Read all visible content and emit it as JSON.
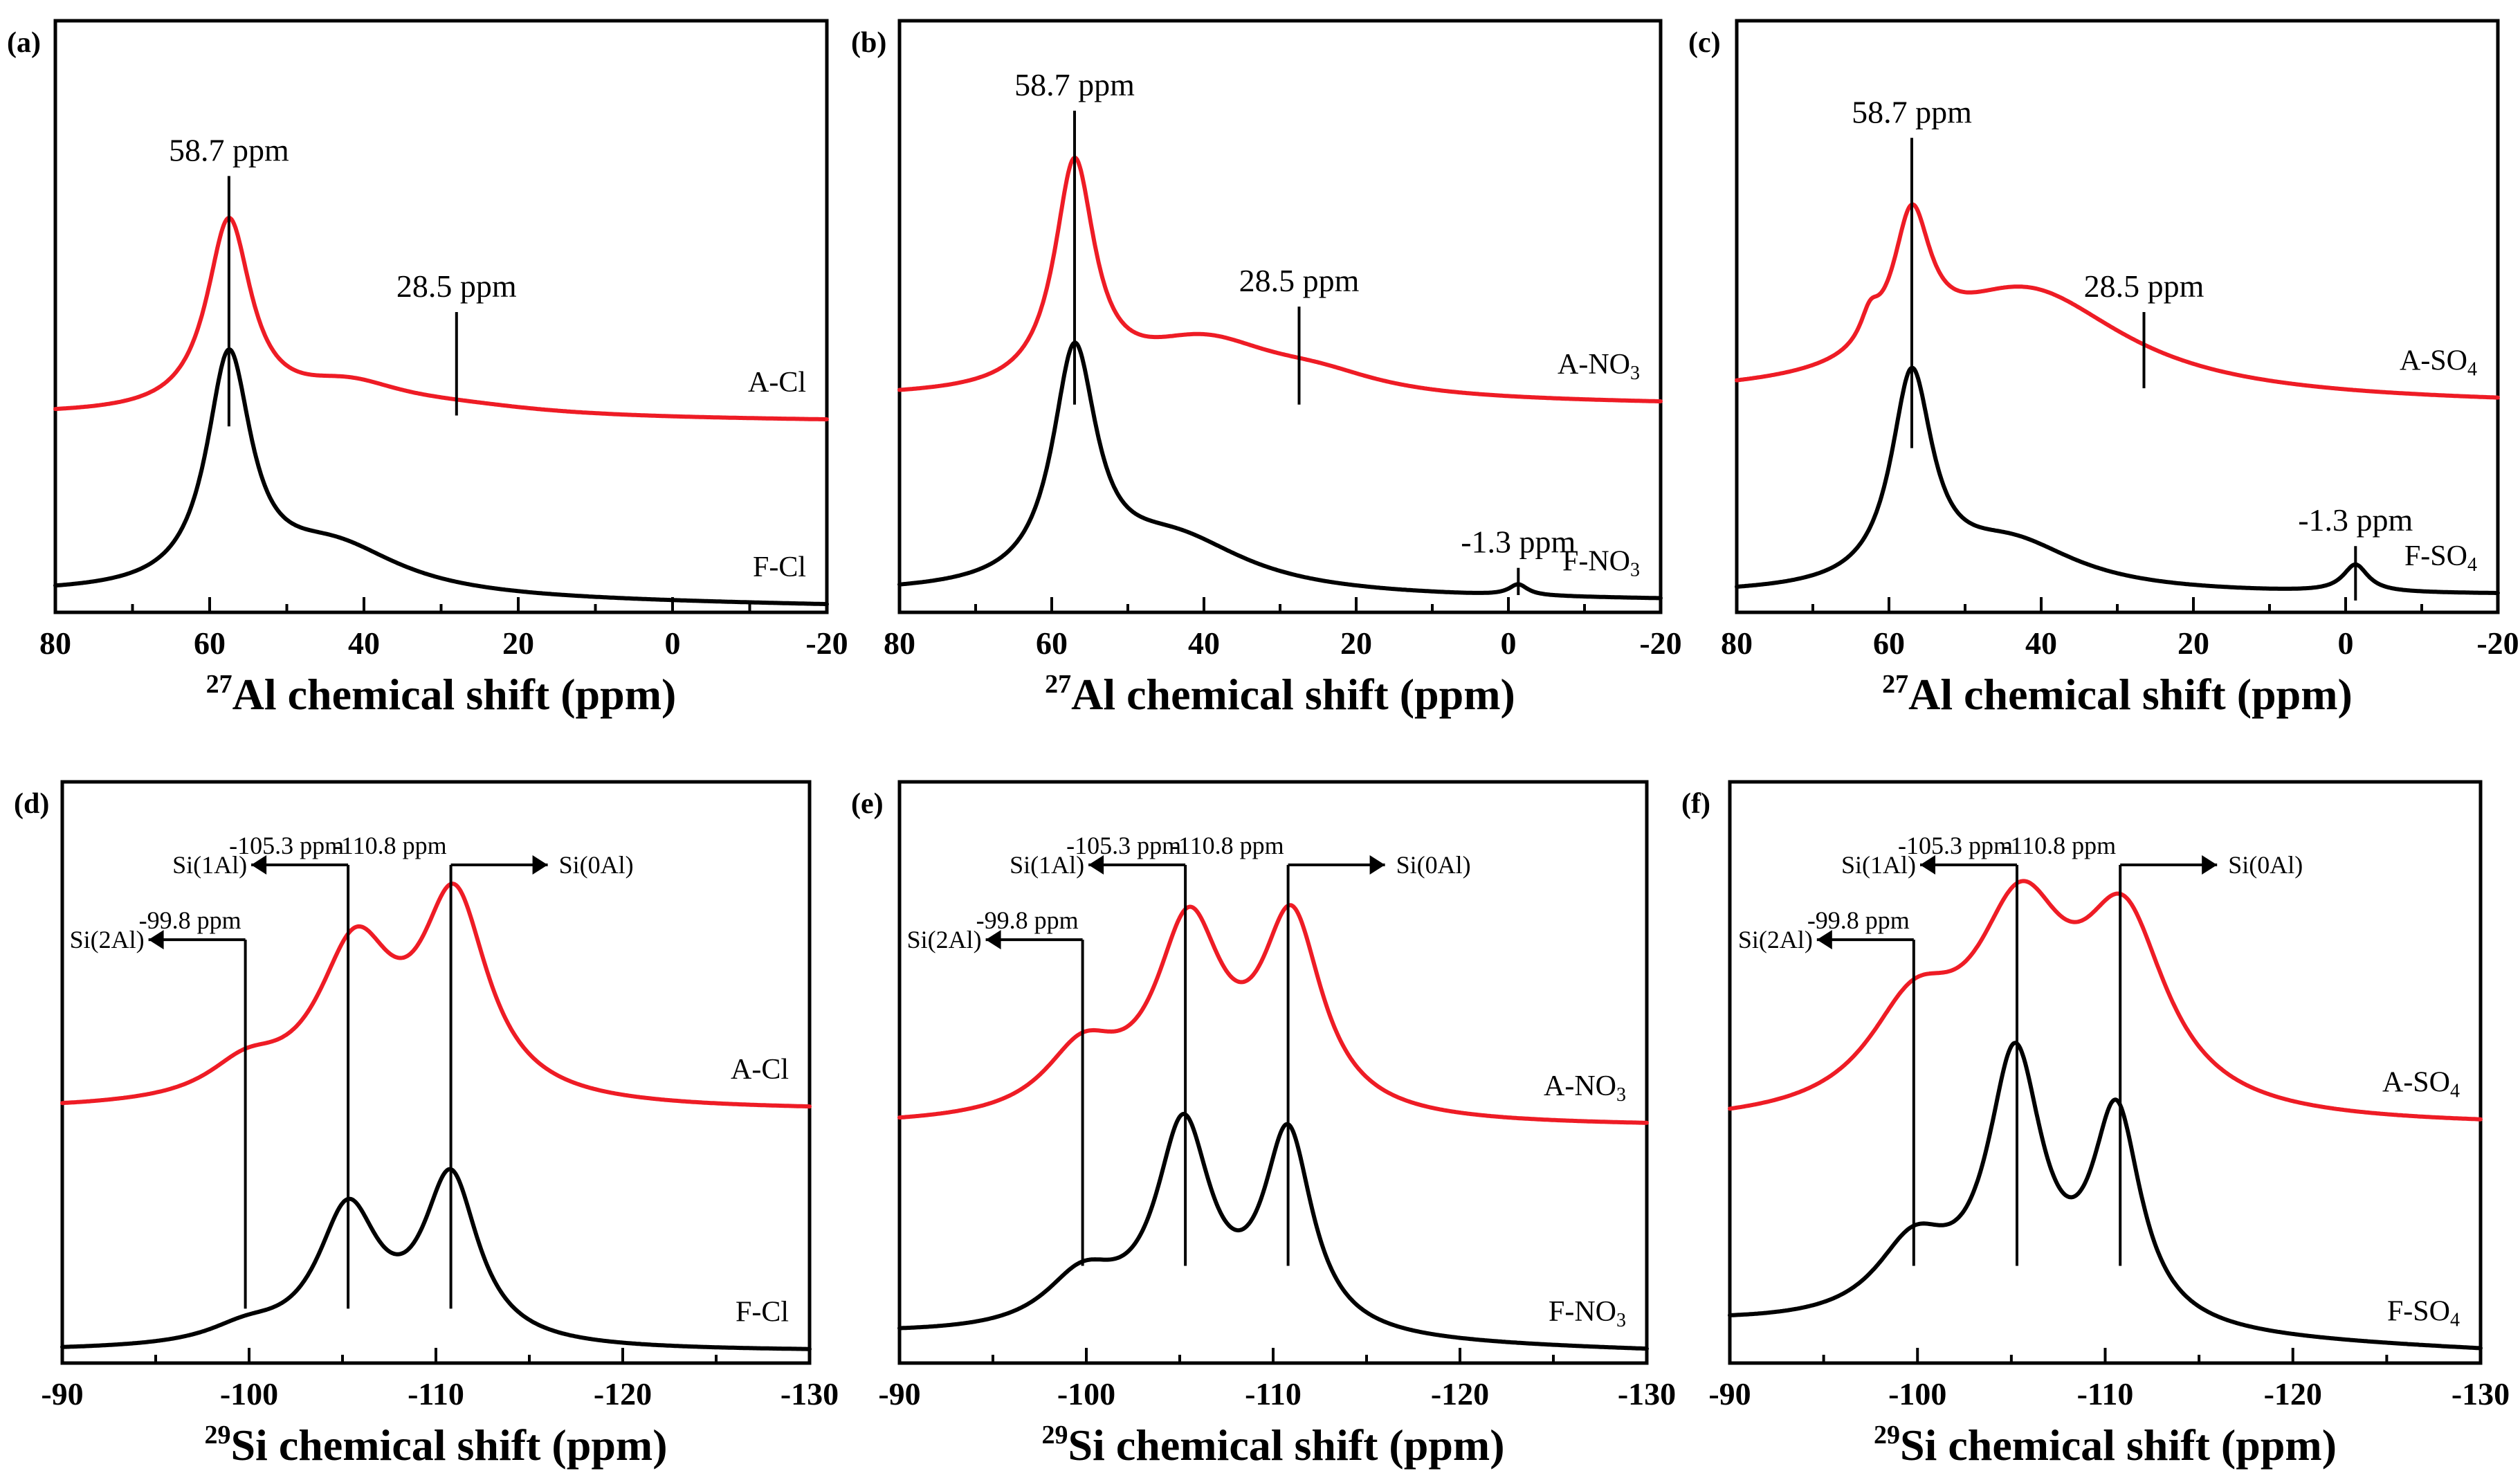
{
  "colors": {
    "top_curve": "#ee1c25",
    "bottom_curve": "#000000",
    "frame": "#000000"
  },
  "chart_data": [
    {
      "panel_label": "(a)",
      "type": "line",
      "xlim": [
        80,
        -20
      ],
      "x_ticks": [
        80,
        60,
        40,
        20,
        0,
        -20
      ],
      "x_tick_labels": [
        "80",
        "60",
        "40",
        "20",
        "0",
        "-20"
      ],
      "xlabel_sup": "27",
      "xlabel_main": "Al chemical shift (ppm)",
      "ylabel": "",
      "series": [
        {
          "name": "A-Cl",
          "label_main": "A-Cl",
          "label_sub": "",
          "color": "#ee1c25",
          "base": 0.34,
          "tail": 0.33,
          "peaks": [
            {
              "center": 57.5,
              "amp": 0.35,
              "width": 3.5
            },
            {
              "center": 42,
              "amp": 0.05,
              "width": 9
            },
            {
              "center": 28,
              "amp": 0.015,
              "width": 14
            }
          ]
        },
        {
          "name": "F-Cl",
          "label_main": "F-Cl",
          "label_sub": "",
          "color": "#000000",
          "base": 0.01,
          "tail": -0.01,
          "peaks": [
            {
              "center": 57.5,
              "amp": 0.42,
              "width": 3.5
            },
            {
              "center": 44,
              "amp": 0.09,
              "width": 11
            }
          ]
        }
      ],
      "annotations": [
        {
          "text": "58.7 ppm",
          "x": 57.5,
          "y_top": 0.78,
          "y_bottom": 0.32,
          "series": "A-Cl"
        },
        {
          "text": "28.5 ppm",
          "x": 28,
          "y_top": 0.53,
          "y_bottom": 0.34,
          "series": "A-Cl"
        }
      ]
    },
    {
      "panel_label": "(b)",
      "type": "line",
      "xlim": [
        80,
        -20
      ],
      "x_ticks": [
        80,
        60,
        40,
        20,
        0,
        -20
      ],
      "x_tick_labels": [
        "80",
        "60",
        "40",
        "20",
        "0",
        "-20"
      ],
      "xlabel_sup": "27",
      "xlabel_main": "Al chemical shift (ppm)",
      "ylabel": "",
      "series": [
        {
          "name": "A-NO3",
          "label_main": "A-NO",
          "label_sub": "3",
          "color": "#ee1c25",
          "base": 0.37,
          "tail": 0.36,
          "peaks": [
            {
              "center": 57,
              "amp": 0.41,
              "width": 3.2
            },
            {
              "center": 40,
              "amp": 0.1,
              "width": 12
            },
            {
              "center": 25,
              "amp": 0.03,
              "width": 10
            }
          ]
        },
        {
          "name": "F-NO3",
          "label_main": "F-NO",
          "label_sub": "3",
          "color": "#000000",
          "base": 0.01,
          "tail": 0.0,
          "peaks": [
            {
              "center": 57,
              "amp": 0.42,
              "width": 3.5
            },
            {
              "center": 44,
              "amp": 0.1,
              "width": 12
            },
            {
              "center": -1.3,
              "amp": 0.02,
              "width": 1.5
            }
          ]
        }
      ],
      "annotations": [
        {
          "text": "58.7 ppm",
          "x": 57,
          "y_top": 0.9,
          "y_bottom": 0.36,
          "series": "A-NO3"
        },
        {
          "text": "28.5 ppm",
          "x": 27.5,
          "y_top": 0.54,
          "y_bottom": 0.36,
          "series": "A-NO3"
        },
        {
          "text": "-1.3 ppm",
          "x": -1.3,
          "y_top": 0.06,
          "y_bottom": 0.01,
          "series": "F-NO3"
        }
      ]
    },
    {
      "panel_label": "(c)",
      "type": "line",
      "xlim": [
        80,
        -20
      ],
      "x_ticks": [
        80,
        60,
        40,
        20,
        0,
        -20
      ],
      "x_tick_labels": [
        "80",
        "60",
        "40",
        "20",
        "0",
        "-20"
      ],
      "xlabel_sup": "27",
      "xlabel_main": "Al chemical shift (ppm)",
      "ylabel": "",
      "series": [
        {
          "name": "A-SO4",
          "label_main": "A-SO",
          "label_sub": "4",
          "color": "#ee1c25",
          "base": 0.37,
          "tail": 0.36,
          "peaks": [
            {
              "center": 57,
              "amp": 0.25,
              "width": 3
            },
            {
              "center": 62.5,
              "amp": 0.05,
              "width": 1.5
            },
            {
              "center": 42,
              "amp": 0.2,
              "width": 16
            }
          ]
        },
        {
          "name": "F-SO4",
          "label_main": "F-SO",
          "label_sub": "4",
          "color": "#000000",
          "base": 0.01,
          "tail": 0.01,
          "peaks": [
            {
              "center": 57,
              "amp": 0.38,
              "width": 3.3
            },
            {
              "center": 44,
              "amp": 0.09,
              "width": 11
            },
            {
              "center": -1.3,
              "amp": 0.05,
              "width": 2
            }
          ]
        }
      ],
      "annotations": [
        {
          "text": "58.7 ppm",
          "x": 57,
          "y_top": 0.85,
          "y_bottom": 0.28,
          "series": "A-SO4"
        },
        {
          "text": "28.5 ppm",
          "x": 26.5,
          "y_top": 0.53,
          "y_bottom": 0.39,
          "series": "A-SO4"
        },
        {
          "text": "-1.3 ppm",
          "x": -1.3,
          "y_top": 0.1,
          "y_bottom": 0.0,
          "series": "F-SO4"
        }
      ]
    },
    {
      "panel_label": "(d)",
      "type": "line",
      "xlim": [
        -90,
        -130
      ],
      "x_ticks": [
        -90,
        -100,
        -110,
        -120,
        -130
      ],
      "x_tick_labels": [
        "-90",
        "-100",
        "-110",
        "-120",
        "-130"
      ],
      "xlabel_sup": "29",
      "xlabel_main": "Si chemical shift (ppm)",
      "ylabel": "",
      "series": [
        {
          "name": "A-Cl",
          "label_main": "A-Cl",
          "label_sub": "",
          "color": "#ee1c25",
          "base": 0.45,
          "tail": 0.45,
          "peaks": [
            {
              "center": -99.8,
              "amp": 0.06,
              "width": 2.5
            },
            {
              "center": -105.7,
              "amp": 0.28,
              "width": 2.5
            },
            {
              "center": -111,
              "amp": 0.37,
              "width": 2.2
            }
          ]
        },
        {
          "name": "F-Cl",
          "label_main": "F-Cl",
          "label_sub": "",
          "color": "#000000",
          "base": 0.0,
          "tail": 0.0,
          "peaks": [
            {
              "center": -99.8,
              "amp": 0.03,
              "width": 2.5
            },
            {
              "center": -105.3,
              "amp": 0.25,
              "width": 2.0
            },
            {
              "center": -110.8,
              "amp": 0.31,
              "width": 1.8
            }
          ]
        }
      ],
      "annotations": [
        {
          "text": "-105.3 ppm",
          "x": -105.3,
          "y_top": 0.91,
          "y_bottom": 0.08,
          "arrow_label": "Si(1Al)",
          "arrow_dir": "left"
        },
        {
          "text": "-110.8 ppm",
          "x": -110.8,
          "y_top": 0.91,
          "y_bottom": 0.08,
          "arrow_label": "Si(0Al)",
          "arrow_dir": "right"
        },
        {
          "text": "-99.8 ppm",
          "x": -99.8,
          "y_top": 0.77,
          "y_bottom": 0.08,
          "arrow_label": "Si(2Al)",
          "arrow_dir": "left"
        }
      ]
    },
    {
      "panel_label": "(e)",
      "type": "line",
      "xlim": [
        -90,
        -130
      ],
      "x_ticks": [
        -90,
        -100,
        -110,
        -120,
        -130
      ],
      "x_tick_labels": [
        "-90",
        "-100",
        "-110",
        "-120",
        "-130"
      ],
      "xlabel_sup": "29",
      "xlabel_main": "Si chemical shift (ppm)",
      "ylabel": "",
      "series": [
        {
          "name": "A-NO3",
          "label_main": "A-NO",
          "label_sub": "3",
          "color": "#ee1c25",
          "base": 0.42,
          "tail": 0.42,
          "peaks": [
            {
              "center": -99.8,
              "amp": 0.12,
              "width": 2.5
            },
            {
              "center": -105.5,
              "amp": 0.35,
              "width": 2.2
            },
            {
              "center": -111,
              "amp": 0.36,
              "width": 2.0
            }
          ]
        },
        {
          "name": "F-NO3",
          "label_main": "F-NO",
          "label_sub": "3",
          "color": "#000000",
          "base": 0.03,
          "tail": 0.0,
          "peaks": [
            {
              "center": -99.8,
              "amp": 0.1,
              "width": 2.5
            },
            {
              "center": -105.2,
              "amp": 0.38,
              "width": 1.8
            },
            {
              "center": -110.8,
              "amp": 0.37,
              "width": 1.6
            }
          ]
        }
      ],
      "annotations": [
        {
          "text": "-105.3 ppm",
          "x": -105.3,
          "y_top": 0.91,
          "y_bottom": 0.16,
          "arrow_label": "Si(1Al)",
          "arrow_dir": "left"
        },
        {
          "text": "-110.8 ppm",
          "x": -110.8,
          "y_top": 0.91,
          "y_bottom": 0.16,
          "arrow_label": "Si(0Al)",
          "arrow_dir": "right"
        },
        {
          "text": "-99.8 ppm",
          "x": -99.8,
          "y_top": 0.77,
          "y_bottom": 0.16,
          "arrow_label": "Si(2Al)",
          "arrow_dir": "left"
        }
      ]
    },
    {
      "panel_label": "(f)",
      "type": "line",
      "xlim": [
        -90,
        -130
      ],
      "x_ticks": [
        -90,
        -100,
        -110,
        -120,
        -130
      ],
      "x_tick_labels": [
        "-90",
        "-100",
        "-110",
        "-120",
        "-130"
      ],
      "xlabel_sup": "29",
      "xlabel_main": "Si chemical shift (ppm)",
      "ylabel": "",
      "series": [
        {
          "name": "A-SO4",
          "label_main": "A-SO",
          "label_sub": "4",
          "color": "#ee1c25",
          "base": 0.42,
          "tail": 0.42,
          "peaks": [
            {
              "center": -99.8,
              "amp": 0.18,
              "width": 3
            },
            {
              "center": -105.5,
              "amp": 0.35,
              "width": 3
            },
            {
              "center": -111,
              "amp": 0.34,
              "width": 2.8
            }
          ]
        },
        {
          "name": "F-SO4",
          "label_main": "F-SO",
          "label_sub": "4",
          "color": "#000000",
          "base": 0.05,
          "tail": 0.0,
          "peaks": [
            {
              "center": -99.8,
              "amp": 0.14,
              "width": 2.5
            },
            {
              "center": -105.2,
              "amp": 0.49,
              "width": 1.8
            },
            {
              "center": -110.6,
              "amp": 0.39,
              "width": 1.6
            }
          ]
        }
      ],
      "annotations": [
        {
          "text": "-105.3 ppm",
          "x": -105.3,
          "y_top": 0.91,
          "y_bottom": 0.16,
          "arrow_label": "Si(1Al)",
          "arrow_dir": "left"
        },
        {
          "text": "-110.8 ppm",
          "x": -110.8,
          "y_top": 0.91,
          "y_bottom": 0.16,
          "arrow_label": "Si(0Al)",
          "arrow_dir": "right"
        },
        {
          "text": "-99.8 ppm",
          "x": -99.8,
          "y_top": 0.77,
          "y_bottom": 0.16,
          "arrow_label": "Si(2Al)",
          "arrow_dir": "left"
        }
      ]
    }
  ]
}
